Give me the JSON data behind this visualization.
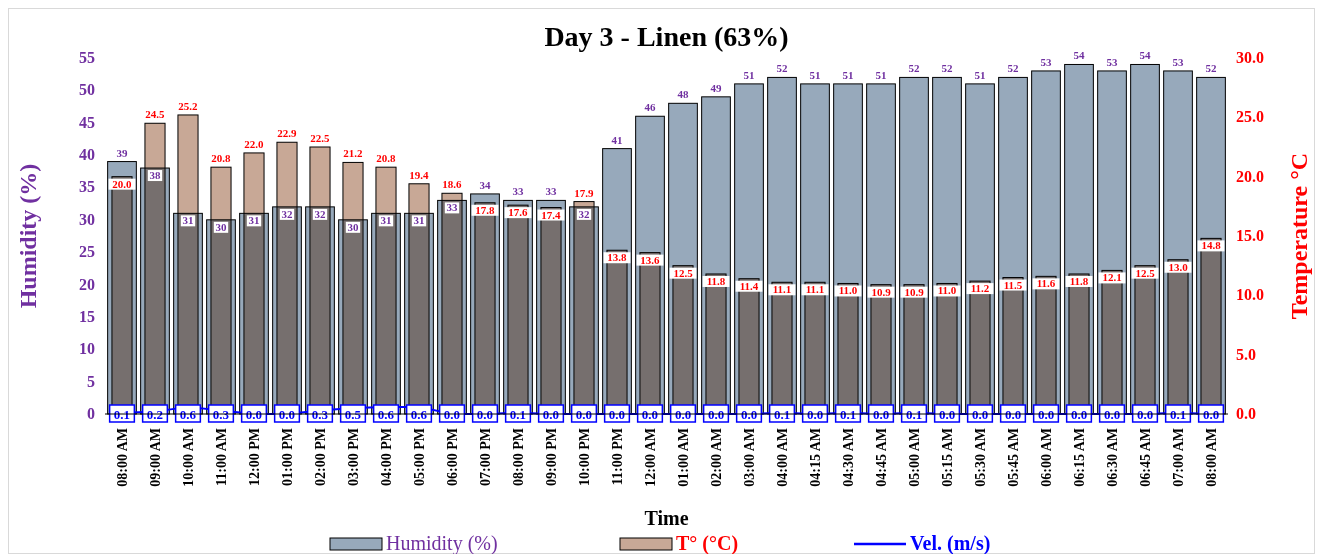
{
  "chart_data": {
    "type": "bar",
    "title": "Day 3 - Linen (63%)",
    "xlabel": "Time",
    "ylabel": "Humidity (%)",
    "y2label": "Temperature °C",
    "categories": [
      "08:00 AM",
      "09:00 AM",
      "10:00 AM",
      "11:00 AM",
      "12:00 PM",
      "01:00 PM",
      "02:00 PM",
      "03:00 PM",
      "04:00 PM",
      "05:00 PM",
      "06:00 PM",
      "07:00 PM",
      "08:00 PM",
      "09:00 PM",
      "10:00 PM",
      "11:00 PM",
      "12:00 AM",
      "01:00 AM",
      "02:00 AM",
      "03:00 AM",
      "04:00 AM",
      "04:15 AM",
      "04:30 AM",
      "04:45 AM",
      "05:00 AM",
      "05:15 AM",
      "05:30 AM",
      "05:45 AM",
      "06:00 AM",
      "06:15 AM",
      "06:30 AM",
      "06:45 AM",
      "07:00 AM",
      "08:00 AM"
    ],
    "series": [
      {
        "name": "Humidity (%)",
        "color": "#97a9bb",
        "values": [
          39,
          38,
          31,
          30,
          31,
          32,
          32,
          30,
          31,
          31,
          33,
          34,
          33,
          33,
          32,
          41,
          46,
          48,
          49,
          51,
          52,
          51,
          51,
          51,
          52,
          52,
          51,
          52,
          53,
          54,
          53,
          54,
          53,
          52
        ]
      },
      {
        "name": "T° (°C)",
        "type": "bar",
        "axis": "y2",
        "color": "#c8a896",
        "values": [
          20.0,
          24.5,
          25.2,
          20.8,
          22.0,
          22.9,
          22.5,
          21.2,
          20.8,
          19.4,
          18.6,
          17.8,
          17.6,
          17.4,
          17.9,
          13.8,
          13.6,
          12.5,
          11.8,
          11.4,
          11.1,
          11.1,
          11.0,
          10.9,
          10.9,
          11.0,
          11.2,
          11.5,
          11.6,
          11.8,
          12.1,
          12.5,
          13.0,
          14.8
        ],
        "value_labels": [
          "20.0",
          "24.5",
          "25.2",
          "20.8",
          "22.0",
          "22.9",
          "22.5",
          "21.2",
          "20.8",
          "19.4",
          "18.6",
          "17.8",
          "17.6",
          "17.4",
          "17.9",
          "13.8",
          "13.6",
          "12.5",
          "11.8",
          "11.4",
          "11.1",
          "11.1",
          "11.0",
          "10.9",
          "10.9",
          "11.0",
          "11.2",
          "11.5",
          "11.6",
          "11.8",
          "12.1",
          "12.5",
          "13.0",
          "14.8"
        ]
      },
      {
        "name": "Vel. (m/s)",
        "type": "line",
        "axis": "y2",
        "marker": "square",
        "color": "#0000ff",
        "values": [
          0.1,
          0.2,
          0.6,
          0.3,
          0.0,
          0.0,
          0.3,
          0.5,
          0.6,
          0.6,
          0.0,
          0.0,
          0.1,
          0.0,
          0.0,
          0.0,
          0.0,
          0.0,
          0.0,
          0.0,
          0.1,
          0.0,
          0.1,
          0.0,
          0.1,
          0.0,
          0.0,
          0.0,
          0.0,
          0.0,
          0.0,
          0.0,
          0.1,
          0.0
        ],
        "value_labels": [
          "0.1",
          "0.2",
          "0.6",
          "0.3",
          "0.0",
          "0.0",
          "0.3",
          "0.5",
          "0.6",
          "0.6",
          "0.0",
          "0.0",
          "0.1",
          "0.0",
          "0.0",
          "0.0",
          "0.0",
          "0.0",
          "0.0",
          "0.0",
          "0.1",
          "0.0",
          "0.1",
          "0.0",
          "0.1",
          "0.0",
          "0.0",
          "0.0",
          "0.0",
          "0.0",
          "0.0",
          "0.0",
          "0.1",
          "0.0"
        ]
      }
    ],
    "ylim": [
      0,
      55
    ],
    "yticks": [
      0,
      5,
      10,
      15,
      20,
      25,
      30,
      35,
      40,
      45,
      50,
      55
    ],
    "y2lim": [
      0,
      30
    ],
    "y2ticks": [
      {
        "value": 0,
        "label": "0.0"
      },
      {
        "value": 5,
        "label": "5.0"
      },
      {
        "value": 10,
        "label": "10.0"
      },
      {
        "value": 15,
        "label": "15.0"
      },
      {
        "value": 20,
        "label": "20.0"
      },
      {
        "value": 25,
        "label": "25.0"
      },
      {
        "value": 30,
        "label": "30.0"
      }
    ],
    "data_labels": true,
    "grid": false,
    "legend": "bottom"
  }
}
